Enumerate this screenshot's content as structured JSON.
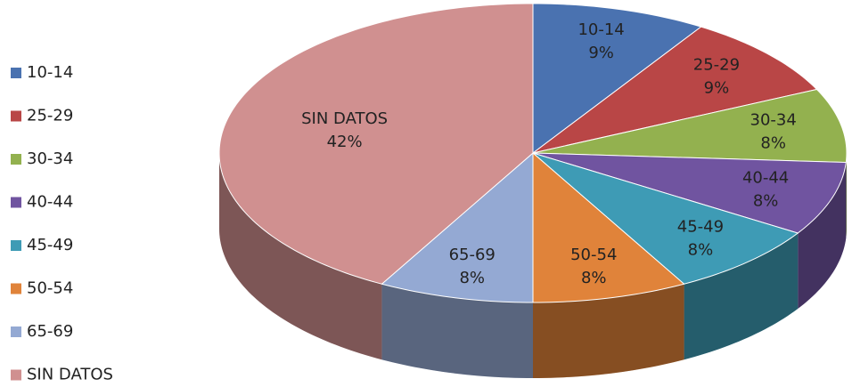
{
  "chart_data": {
    "type": "pie",
    "categories": [
      "10-14",
      "25-29",
      "30-34",
      "40-44",
      "45-49",
      "50-54",
      "65-69",
      "SIN DATOS"
    ],
    "values": [
      9,
      9,
      8,
      8,
      8,
      8,
      8,
      42
    ],
    "value_labels": [
      "9%",
      "9%",
      "8%",
      "8%",
      "8%",
      "8%",
      "8%",
      "42%"
    ],
    "colors": [
      "#4a72b0",
      "#b94646",
      "#93b14f",
      "#7054a0",
      "#3e9bb5",
      "#e0833a",
      "#94a9d3",
      "#d09090"
    ],
    "legend": "left"
  }
}
